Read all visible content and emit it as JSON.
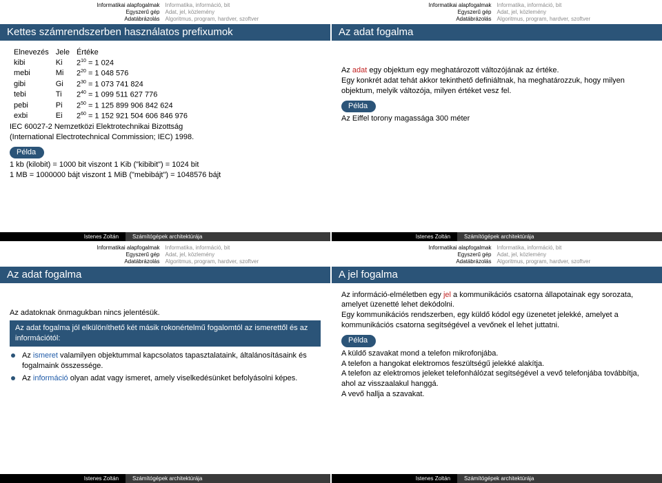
{
  "colors": {
    "accent": "#2b5478",
    "footer_dark": "#000000",
    "footer_light": "#3a3a3a",
    "muted": "#8a8a8a",
    "link": "#1e5aa8",
    "emph": "#c02020",
    "bg": "#ffffff"
  },
  "nav": {
    "left": [
      "Informatikai alapfogalmak",
      "Egyszerű gép",
      "Adatábrázolás"
    ],
    "right": [
      "Informatika, információ, bit",
      "Adat, jel, közlemény",
      "Algoritmus, program, hardver, szoftver"
    ]
  },
  "footer": {
    "author": "Istenes Zoltán",
    "title": "Számítógépek architektúrája"
  },
  "pelda_label": "Példa",
  "s1": {
    "title": "Kettes számrendszerben használatos prefixumok",
    "head": {
      "c1": "Elnevezés",
      "c2": "Jele",
      "c3": "Értéke"
    },
    "rows": [
      {
        "name": "kibi",
        "sym": "Ki",
        "exp": "10",
        "val": "= 1 024"
      },
      {
        "name": "mebi",
        "sym": "Mi",
        "exp": "20",
        "val": "= 1 048 576"
      },
      {
        "name": "gibi",
        "sym": "Gi",
        "exp": "30",
        "val": "= 1 073 741 824"
      },
      {
        "name": "tebi",
        "sym": "Ti",
        "exp": "40",
        "val": "= 1 099 511 627 776"
      },
      {
        "name": "pebi",
        "sym": "Pi",
        "exp": "50",
        "val": "= 1 125 899 906 842 624"
      },
      {
        "name": "exbi",
        "sym": "Ei",
        "exp": "60",
        "val": "= 1 152 921 504 606 846 976"
      }
    ],
    "iec1": "IEC 60027-2 Nemzetközi Elektrotechnikai Bizottság",
    "iec2": "(International Electrotechnical Commission; IEC) 1998.",
    "ex1": "1 kb (kilobit) = 1000 bit viszont 1 Kib (\"kibibit\") = 1024 bit",
    "ex2": "1 MB = 1000000 bájt viszont 1 MiB (\"mebibájt\") = 1048576 bájt"
  },
  "s2": {
    "title": "Az adat fogalma",
    "p1a": "Az ",
    "p1b": "adat",
    "p1c": " egy objektum egy meghatározott változójának az értéke.",
    "p2": "Egy konkrét adat tehát akkor tekinthető definiáltnak, ha meghatározzuk, hogy milyen objektum, melyik változója, milyen értéket vesz fel.",
    "ex": "Az Eiffel torony magassága 300 méter"
  },
  "s3": {
    "title": "Az adat fogalma",
    "p1": "Az adatoknak önmagukban nincs jelentésük.",
    "box": "Az adat fogalma jól elkülöníthető két másik rokonértelmű fogalomtól az ismerettől és az információtól:",
    "li1a": "Az ",
    "li1b": "ismeret",
    "li1c": " valamilyen objektummal kapcsolatos tapasztalataink, általánosításaink és fogalmaink összessége.",
    "li2a": "Az ",
    "li2b": "információ",
    "li2c": " olyan adat vagy ismeret, amely viselkedésünket befolyásolni képes."
  },
  "s4": {
    "title": "A jel fogalma",
    "p1a": "Az információ-elméletben egy ",
    "p1b": "jel",
    "p1c": " a kommunikációs csatorna állapotainak egy sorozata, amelyet üzenetté lehet dekódolni.",
    "p2": "Egy kommunikációs rendszerben, egy küldő kódol egy üzenetet jelekké, amelyet a kommunikációs csatorna segítségével a vevőnek el lehet juttatni.",
    "ex1": "A küldő szavakat mond a telefon mikrofonjába.",
    "ex2": "A telefon a hangokat elektromos feszültségű jelekké alakítja.",
    "ex3": "A telefon az elektromos jeleket telefonhálózat segítségével a vevő telefonjába továbbítja, ahol az visszaalakul hanggá.",
    "ex4": "A vevő hallja a szavakat."
  }
}
